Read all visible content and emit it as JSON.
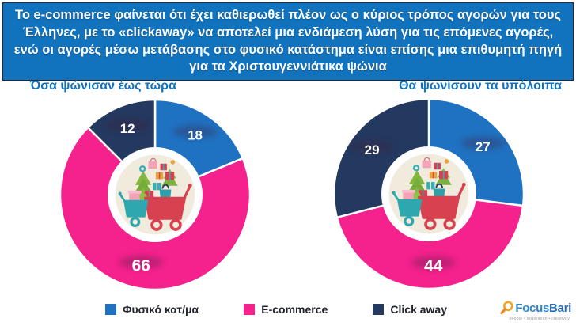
{
  "header": {
    "text": "Το e-commerce φαίνεται ότι έχει καθιερωθεί πλέον ως ο κύριος τρόπος αγορών για τους Έλληνες, με το «clickaway» να αποτελεί μια ενδιάμεση λύση για τις επόμενες αγορές, ενώ οι αγορές μέσω μετάβασης στο φυσικό κατάστημα είναι επίσης μια επιθυμητή πηγή για τα Χριστουγεννιάτικα ψώνια"
  },
  "chart_data": [
    {
      "type": "pie",
      "subtype": "donut",
      "title": "Όσα ψώνισαν έως τώρα",
      "title_align": "left",
      "categories": [
        "Φυσικό κατ/μα",
        "E-commerce",
        "Click away"
      ],
      "values": [
        18,
        66,
        12
      ],
      "colors": [
        "#1F72C1",
        "#F5218D",
        "#24395F"
      ],
      "start_angle": 0,
      "direction": "clockwise",
      "labels": [
        "18",
        "66",
        "12"
      ],
      "legend_position": "bottom"
    },
    {
      "type": "pie",
      "subtype": "donut",
      "title": "Θα ψωνίσουν τα υπόλοιπα",
      "title_align": "right",
      "categories": [
        "Φυσικό κατ/μα",
        "E-commerce",
        "Click away"
      ],
      "values": [
        27,
        44,
        29
      ],
      "colors": [
        "#1F72C1",
        "#F5218D",
        "#24395F"
      ],
      "start_angle": 0,
      "direction": "clockwise",
      "labels": [
        "27",
        "44",
        "29"
      ],
      "legend_position": "bottom"
    }
  ],
  "legend": {
    "items": [
      {
        "label": "Φυσικό κατ/μα",
        "color": "#1F72C1"
      },
      {
        "label": "E-commerce",
        "color": "#F5218D"
      },
      {
        "label": "Click away",
        "color": "#24395F"
      }
    ]
  },
  "logo": {
    "focus": "Focus",
    "bari": "Bari",
    "tagline": "people • inspiration • creativity"
  },
  "colors": {
    "header_bg": "#1173BE",
    "header_border": "#222B38",
    "title_text": "#1173BE",
    "slice_label_text": "#FFFFFF",
    "legend_text": "#21242E",
    "background": "#FFFFFF"
  }
}
